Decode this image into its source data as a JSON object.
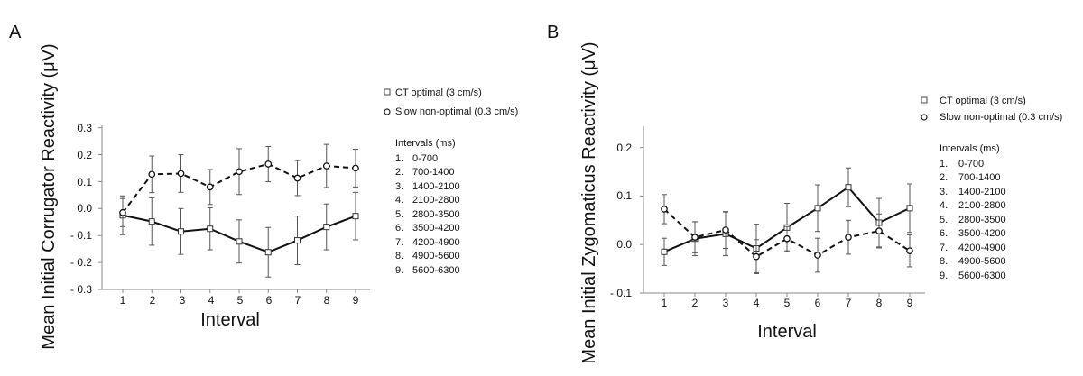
{
  "chart_data": [
    {
      "type": "line",
      "panel": "A",
      "ylabel": "Mean Initial Corrugator Reactivity (μV)",
      "xlabel": "Interval",
      "x": [
        1,
        2,
        3,
        4,
        5,
        6,
        7,
        8,
        9
      ],
      "ylim": [
        -0.3,
        0.3
      ],
      "yticks": [
        -0.3,
        -0.2,
        -0.1,
        0.0,
        0.1,
        0.2,
        0.3
      ],
      "ytick_labels": [
        "- 0.3",
        "- 0.2",
        "- 0.1",
        "0.0",
        "0.1",
        "0.2",
        "0.3"
      ],
      "series": [
        {
          "name": "CT optimal (3 cm/s)",
          "marker": "square",
          "line": "solid",
          "values": [
            -0.025,
            -0.048,
            -0.085,
            -0.075,
            -0.122,
            -0.162,
            -0.118,
            -0.068,
            -0.028
          ],
          "errors": [
            0.072,
            0.088,
            0.085,
            0.078,
            0.08,
            0.092,
            0.09,
            0.085,
            0.088
          ]
        },
        {
          "name": "Slow non-optimal (0.3 cm/s)",
          "marker": "circle",
          "line": "dashed",
          "values": [
            -0.015,
            0.127,
            0.13,
            0.08,
            0.137,
            0.165,
            0.113,
            0.158,
            0.15
          ],
          "errors": [
            0.052,
            0.068,
            0.07,
            0.065,
            0.085,
            0.065,
            0.065,
            0.08,
            0.07
          ]
        }
      ],
      "legend": [
        "CT optimal (3 cm/s)",
        "Slow non-optimal (0.3 cm/s)"
      ],
      "intervals_title": "Intervals (ms)",
      "intervals": [
        "1.",
        "0-700",
        "2.",
        "700-1400",
        "3.",
        "1400-2100",
        "4.",
        "2100-2800",
        "5.",
        "2800-3500",
        "6.",
        "3500-4200",
        "7.",
        "4200-4900",
        "8.",
        "4900-5600",
        "9.",
        "5600-6300"
      ]
    },
    {
      "type": "line",
      "panel": "B",
      "ylabel": "Mean Initial Zygomaticus Reactivity (μV)",
      "xlabel": "Interval",
      "x": [
        1,
        2,
        3,
        4,
        5,
        6,
        7,
        8,
        9
      ],
      "ylim": [
        -0.1,
        0.25
      ],
      "yticks": [
        -0.1,
        0.0,
        0.1,
        0.2
      ],
      "ytick_labels": [
        "- 0.1",
        "0.0",
        "0.1",
        "0.2"
      ],
      "series": [
        {
          "name": "CT optimal (3 cm/s)",
          "marker": "square",
          "line": "solid",
          "values": [
            -0.015,
            0.012,
            0.022,
            -0.008,
            0.035,
            0.075,
            0.118,
            0.045,
            0.075
          ],
          "errors": [
            0.028,
            0.035,
            0.045,
            0.05,
            0.05,
            0.048,
            0.04,
            0.05,
            0.05
          ]
        },
        {
          "name": "Slow non-optimal (0.3 cm/s)",
          "marker": "circle",
          "line": "dashed",
          "values": [
            0.073,
            0.015,
            0.03,
            -0.025,
            0.012,
            -0.022,
            0.015,
            0.028,
            -0.013
          ],
          "errors": [
            0.03,
            0.032,
            0.038,
            0.035,
            0.025,
            0.035,
            0.035,
            0.035,
            0.033
          ]
        }
      ],
      "legend": [
        "CT optimal (3 cm/s)",
        "Slow non-optimal (0.3 cm/s)"
      ],
      "intervals_title": "Intervals (ms)",
      "intervals": [
        "1.",
        "0-700",
        "2.",
        "700-1400",
        "3.",
        "1400-2100",
        "4.",
        "2100-2800",
        "5.",
        "2800-3500",
        "6.",
        "3500-4200",
        "7.",
        "4200-4900",
        "8.",
        "4900-5600",
        "9.",
        "5600-6300"
      ]
    }
  ]
}
